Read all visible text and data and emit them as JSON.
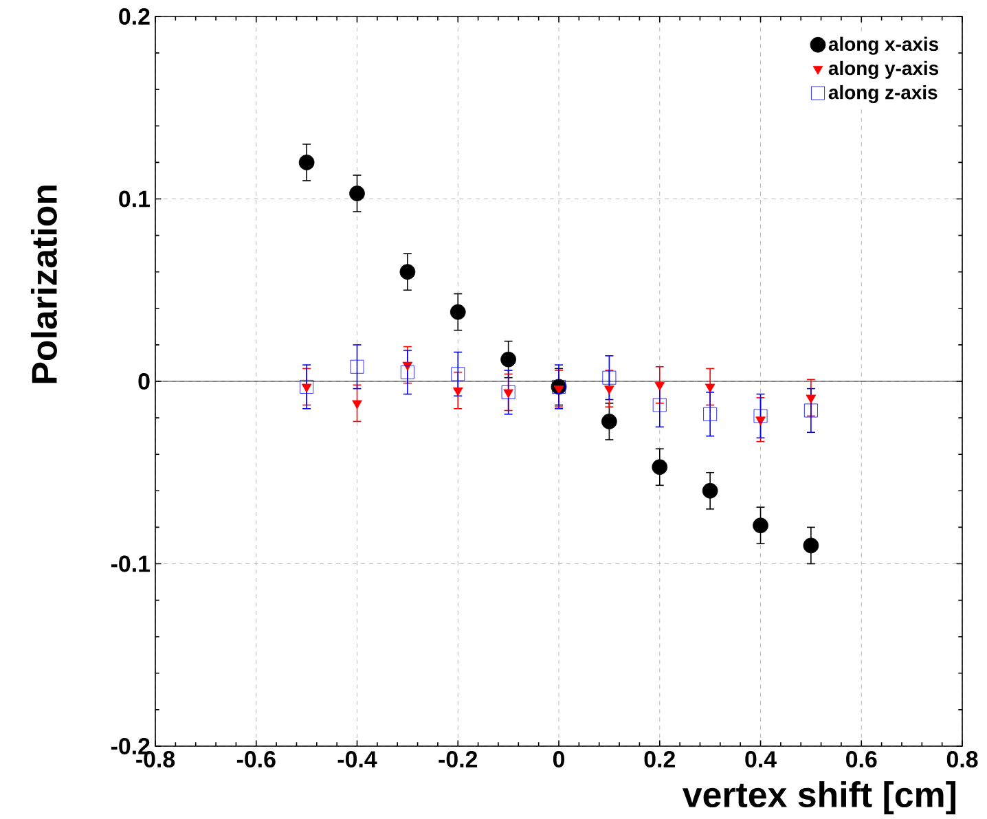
{
  "chart_data": {
    "type": "scatter",
    "xlabel": "vertex shift [cm]",
    "ylabel": "Polarization",
    "x": [
      -0.5,
      -0.4,
      -0.3,
      -0.2,
      -0.1,
      0,
      0.1,
      0.2,
      0.3,
      0.4,
      0.5
    ],
    "series": [
      {
        "name": "along x-axis",
        "color": "#000000",
        "marker": "circle",
        "values": [
          0.12,
          0.103,
          0.06,
          0.038,
          0.012,
          -0.003,
          -0.022,
          -0.047,
          -0.06,
          -0.079,
          -0.09
        ],
        "errors": [
          0.01,
          0.01,
          0.01,
          0.01,
          0.01,
          0.01,
          0.01,
          0.01,
          0.01,
          0.01,
          0.01
        ]
      },
      {
        "name": "along y-axis",
        "color": "#ff0000",
        "marker": "triangle",
        "values": [
          -0.003,
          -0.012,
          0.009,
          -0.005,
          -0.006,
          -0.004,
          -0.004,
          -0.002,
          -0.003,
          -0.021,
          -0.009
        ],
        "errors": [
          0.01,
          0.01,
          0.01,
          0.01,
          0.01,
          0.01,
          0.01,
          0.01,
          0.01,
          0.012,
          0.01
        ]
      },
      {
        "name": "along z-axis",
        "color": "#0000ff",
        "marker": "square",
        "values": [
          -0.003,
          0.008,
          0.005,
          0.004,
          -0.006,
          -0.003,
          0.002,
          -0.013,
          -0.018,
          -0.019,
          -0.016
        ],
        "errors": [
          0.012,
          0.012,
          0.012,
          0.012,
          0.012,
          0.012,
          0.012,
          0.012,
          0.012,
          0.012,
          0.012
        ]
      }
    ],
    "xlim": [
      -0.8,
      0.8
    ],
    "xticks": [
      -0.8,
      -0.6,
      -0.4,
      -0.2,
      0,
      0.2,
      0.4,
      0.6,
      0.8
    ],
    "ylim": [
      -0.2,
      0.2
    ],
    "yticks": [
      -0.2,
      -0.1,
      0,
      0.1,
      0.2
    ],
    "ref_lines": [
      {
        "axis": "y",
        "value": 0,
        "color": "#000000"
      }
    ],
    "grid": true,
    "legend": "top right"
  }
}
